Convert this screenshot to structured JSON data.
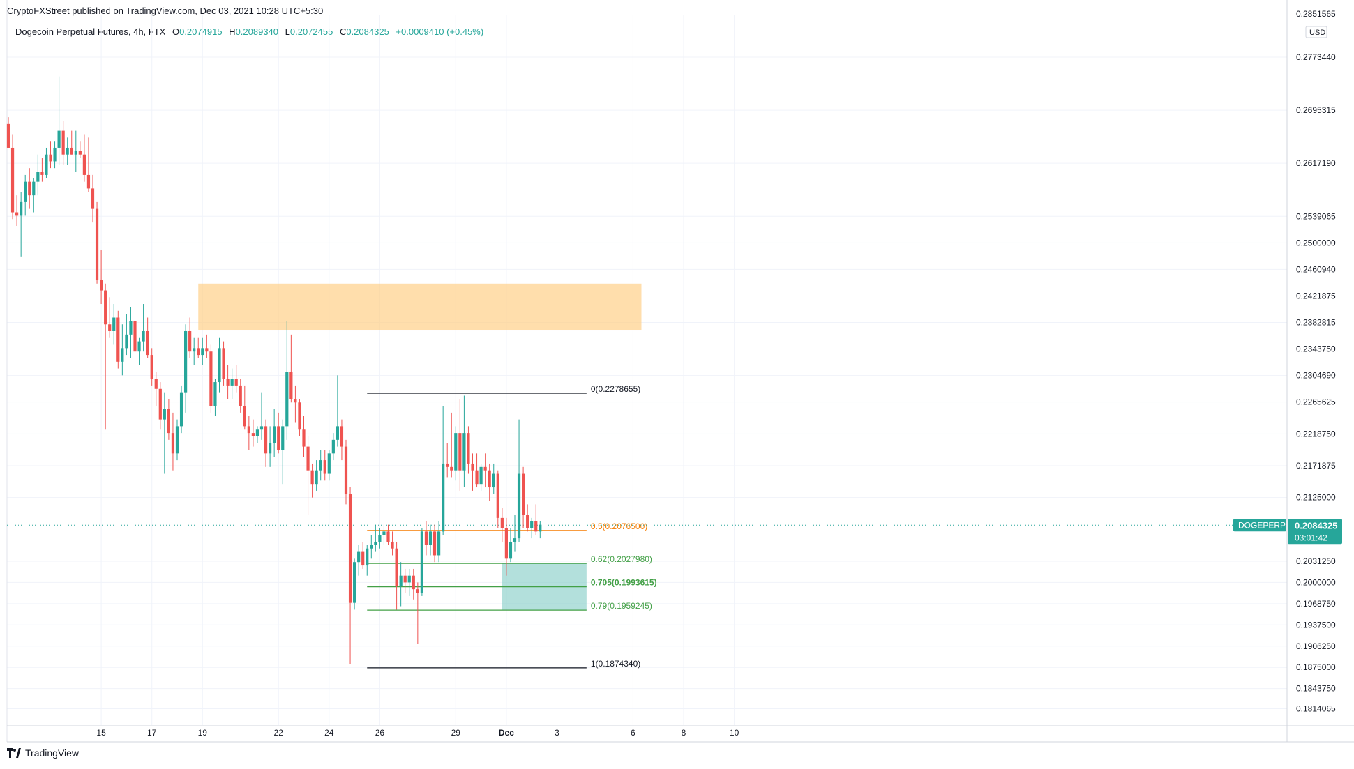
{
  "header": {
    "published": "CryptoFXStreet published on TradingView.com, Dec 03, 2021 10:28 UTC+5:30",
    "symbol": "Dogecoin Perpetual Futures, 4h, FTX",
    "ohlc": {
      "o_label": "O",
      "o": "0.2074915",
      "h_label": "H",
      "h": "0.2089340",
      "l_label": "L",
      "l": "0.2072455",
      "c_label": "C",
      "c": "0.2084325",
      "change": "+0.0009410 (+0.45%)"
    }
  },
  "footer": {
    "brand": "TradingView"
  },
  "colors": {
    "up": "#26a69a",
    "down": "#ef5350",
    "zone": "#ffcc80",
    "fibzone": "#80cbc4",
    "fib05": "#f57c00",
    "fibgreen": "#43a047"
  },
  "chart_data": {
    "type": "candlestick",
    "currency": "USD",
    "ylim": [
      0.179,
      0.2835
    ],
    "price_ticks": [
      "0.2851565",
      "0.2773440",
      "0.2695315",
      "0.2617190",
      "0.2539065",
      "0.2500000",
      "0.2460940",
      "0.2421875",
      "0.2382815",
      "0.2343750",
      "0.2304690",
      "0.2265625",
      "0.2218750",
      "0.2171875",
      "0.2125000",
      "0.2031250",
      "0.2000000",
      "0.1968750",
      "0.1937500",
      "0.1906250",
      "0.1875000",
      "0.1843750",
      "0.1814065"
    ],
    "date_ticks": [
      {
        "label": "15",
        "i": 22
      },
      {
        "label": "17",
        "i": 34
      },
      {
        "label": "19",
        "i": 46
      },
      {
        "label": "22",
        "i": 64
      },
      {
        "label": "24",
        "i": 76
      },
      {
        "label": "26",
        "i": 88
      },
      {
        "label": "29",
        "i": 106
      },
      {
        "label": "Dec",
        "i": 118
      },
      {
        "label": "3",
        "i": 130
      },
      {
        "label": "6",
        "i": 148
      },
      {
        "label": "8",
        "i": 160
      },
      {
        "label": "10",
        "i": 172
      }
    ],
    "candles": [
      [
        0.2675,
        0.2685,
        0.264,
        0.264
      ],
      [
        0.264,
        0.266,
        0.2535,
        0.2545
      ],
      [
        0.2545,
        0.257,
        0.2525,
        0.254
      ],
      [
        0.254,
        0.2575,
        0.248,
        0.256
      ],
      [
        0.256,
        0.26,
        0.254,
        0.259
      ],
      [
        0.259,
        0.261,
        0.255,
        0.257
      ],
      [
        0.257,
        0.2595,
        0.2545,
        0.259
      ],
      [
        0.259,
        0.263,
        0.257,
        0.2605
      ],
      [
        0.2605,
        0.2625,
        0.259,
        0.26
      ],
      [
        0.26,
        0.264,
        0.2595,
        0.263
      ],
      [
        0.263,
        0.265,
        0.261,
        0.262
      ],
      [
        0.262,
        0.265,
        0.261,
        0.264
      ],
      [
        0.264,
        0.2745,
        0.2615,
        0.2665
      ],
      [
        0.2665,
        0.268,
        0.2615,
        0.263
      ],
      [
        0.263,
        0.2655,
        0.2615,
        0.264
      ],
      [
        0.264,
        0.2665,
        0.263,
        0.263
      ],
      [
        0.263,
        0.2665,
        0.2605,
        0.2635
      ],
      [
        0.2635,
        0.265,
        0.2625,
        0.263
      ],
      [
        0.263,
        0.266,
        0.259,
        0.26
      ],
      [
        0.26,
        0.2655,
        0.2575,
        0.258
      ],
      [
        0.258,
        0.26,
        0.253,
        0.255
      ],
      [
        0.255,
        0.256,
        0.244,
        0.2445
      ],
      [
        0.2445,
        0.249,
        0.241,
        0.243
      ],
      [
        0.243,
        0.244,
        0.2225,
        0.238
      ],
      [
        0.238,
        0.242,
        0.236,
        0.237
      ],
      [
        0.237,
        0.241,
        0.235,
        0.239
      ],
      [
        0.239,
        0.24,
        0.2315,
        0.2325
      ],
      [
        0.2325,
        0.238,
        0.2305,
        0.2345
      ],
      [
        0.2345,
        0.2395,
        0.2335,
        0.2365
      ],
      [
        0.2365,
        0.2405,
        0.233,
        0.2385
      ],
      [
        0.2385,
        0.2395,
        0.2325,
        0.234
      ],
      [
        0.234,
        0.236,
        0.232,
        0.2355
      ],
      [
        0.2355,
        0.241,
        0.234,
        0.237
      ],
      [
        0.237,
        0.239,
        0.233,
        0.2335
      ],
      [
        0.2335,
        0.2345,
        0.229,
        0.23
      ],
      [
        0.23,
        0.231,
        0.226,
        0.2285
      ],
      [
        0.2285,
        0.2295,
        0.2225,
        0.224
      ],
      [
        0.224,
        0.228,
        0.216,
        0.2255
      ],
      [
        0.2255,
        0.227,
        0.221,
        0.222
      ],
      [
        0.222,
        0.225,
        0.2165,
        0.219
      ],
      [
        0.219,
        0.224,
        0.218,
        0.223
      ],
      [
        0.223,
        0.229,
        0.222,
        0.228
      ],
      [
        0.228,
        0.238,
        0.225,
        0.237
      ],
      [
        0.237,
        0.239,
        0.233,
        0.234
      ],
      [
        0.234,
        0.236,
        0.232,
        0.2345
      ],
      [
        0.2345,
        0.236,
        0.233,
        0.2335
      ],
      [
        0.2335,
        0.236,
        0.232,
        0.2345
      ],
      [
        0.2345,
        0.2365,
        0.233,
        0.234
      ],
      [
        0.234,
        0.235,
        0.225,
        0.226
      ],
      [
        0.226,
        0.23,
        0.2245,
        0.2295
      ],
      [
        0.2295,
        0.236,
        0.228,
        0.2345
      ],
      [
        0.2345,
        0.2355,
        0.229,
        0.23
      ],
      [
        0.23,
        0.232,
        0.227,
        0.229
      ],
      [
        0.229,
        0.2315,
        0.227,
        0.23
      ],
      [
        0.23,
        0.232,
        0.228,
        0.229
      ],
      [
        0.229,
        0.23,
        0.225,
        0.226
      ],
      [
        0.226,
        0.229,
        0.2225,
        0.223
      ],
      [
        0.223,
        0.2245,
        0.2195,
        0.222
      ],
      [
        0.222,
        0.224,
        0.22,
        0.2215
      ],
      [
        0.2215,
        0.223,
        0.2205,
        0.2225
      ],
      [
        0.2225,
        0.228,
        0.221,
        0.223
      ],
      [
        0.223,
        0.224,
        0.217,
        0.219
      ],
      [
        0.219,
        0.223,
        0.217,
        0.2205
      ],
      [
        0.2205,
        0.2255,
        0.2185,
        0.223
      ],
      [
        0.223,
        0.225,
        0.219,
        0.2195
      ],
      [
        0.2195,
        0.224,
        0.2145,
        0.223
      ],
      [
        0.223,
        0.2385,
        0.221,
        0.231
      ],
      [
        0.231,
        0.2365,
        0.2265,
        0.227
      ],
      [
        0.227,
        0.229,
        0.2235,
        0.2265
      ],
      [
        0.2265,
        0.227,
        0.2215,
        0.2225
      ],
      [
        0.2225,
        0.2245,
        0.2185,
        0.22
      ],
      [
        0.22,
        0.2215,
        0.21,
        0.2165
      ],
      [
        0.2165,
        0.2175,
        0.2125,
        0.2145
      ],
      [
        0.2145,
        0.218,
        0.2135,
        0.2165
      ],
      [
        0.2165,
        0.2195,
        0.215,
        0.218
      ],
      [
        0.218,
        0.2195,
        0.215,
        0.216
      ],
      [
        0.216,
        0.2195,
        0.215,
        0.219
      ],
      [
        0.219,
        0.222,
        0.218,
        0.221
      ],
      [
        0.221,
        0.2305,
        0.22,
        0.223
      ],
      [
        0.223,
        0.224,
        0.218,
        0.22
      ],
      [
        0.22,
        0.221,
        0.2115,
        0.213
      ],
      [
        0.213,
        0.214,
        0.188,
        0.197
      ],
      [
        0.197,
        0.2035,
        0.196,
        0.203
      ],
      [
        0.203,
        0.2055,
        0.201,
        0.2045
      ],
      [
        0.2045,
        0.206,
        0.202,
        0.2025
      ],
      [
        0.2025,
        0.2055,
        0.201,
        0.205
      ],
      [
        0.205,
        0.207,
        0.2035,
        0.2055
      ],
      [
        0.2055,
        0.2085,
        0.2045,
        0.206
      ],
      [
        0.206,
        0.208,
        0.205,
        0.207
      ],
      [
        0.207,
        0.2085,
        0.2055,
        0.2075
      ],
      [
        0.2075,
        0.2085,
        0.2055,
        0.206
      ],
      [
        0.206,
        0.2075,
        0.204,
        0.205
      ],
      [
        0.205,
        0.206,
        0.196,
        0.1995
      ],
      [
        0.1995,
        0.203,
        0.1965,
        0.201
      ],
      [
        0.201,
        0.202,
        0.1985,
        0.2
      ],
      [
        0.2,
        0.202,
        0.198,
        0.201
      ],
      [
        0.201,
        0.202,
        0.1975,
        0.199
      ],
      [
        0.199,
        0.2,
        0.191,
        0.1985
      ],
      [
        0.1985,
        0.208,
        0.198,
        0.2075
      ],
      [
        0.2075,
        0.209,
        0.204,
        0.2055
      ],
      [
        0.2055,
        0.2085,
        0.204,
        0.2075
      ],
      [
        0.2075,
        0.2085,
        0.203,
        0.204
      ],
      [
        0.204,
        0.209,
        0.203,
        0.2075
      ],
      [
        0.2075,
        0.226,
        0.207,
        0.2175
      ],
      [
        0.2175,
        0.2205,
        0.2155,
        0.217
      ],
      [
        0.217,
        0.225,
        0.2155,
        0.2165
      ],
      [
        0.2165,
        0.223,
        0.215,
        0.222
      ],
      [
        0.222,
        0.227,
        0.2135,
        0.2165
      ],
      [
        0.2165,
        0.2275,
        0.214,
        0.222
      ],
      [
        0.222,
        0.223,
        0.216,
        0.2175
      ],
      [
        0.2175,
        0.219,
        0.2135,
        0.2165
      ],
      [
        0.2165,
        0.219,
        0.214,
        0.2145
      ],
      [
        0.2145,
        0.2175,
        0.2135,
        0.217
      ],
      [
        0.217,
        0.219,
        0.214,
        0.2165
      ],
      [
        0.2165,
        0.2175,
        0.212,
        0.214
      ],
      [
        0.214,
        0.2175,
        0.213,
        0.216
      ],
      [
        0.216,
        0.2165,
        0.208,
        0.2095
      ],
      [
        0.2095,
        0.211,
        0.206,
        0.208
      ],
      [
        0.208,
        0.2095,
        0.201,
        0.2035
      ],
      [
        0.2035,
        0.208,
        0.203,
        0.206
      ],
      [
        0.206,
        0.21,
        0.2045,
        0.2065
      ],
      [
        0.2065,
        0.224,
        0.206,
        0.216
      ],
      [
        0.216,
        0.217,
        0.208,
        0.21
      ],
      [
        0.21,
        0.2115,
        0.2075,
        0.208
      ],
      [
        0.208,
        0.2095,
        0.2065,
        0.209
      ],
      [
        0.209,
        0.2115,
        0.207,
        0.2075
      ],
      [
        0.2075,
        0.209,
        0.2065,
        0.2085
      ]
    ],
    "resistance_zone": {
      "i_start": 45,
      "i_end": 150,
      "y_low": 0.2371,
      "y_high": 0.244
    },
    "support_zone": {
      "i_start": 117,
      "i_end": 137,
      "y_low": 0.19592,
      "y_high": 0.2028
    },
    "fib": {
      "i_start": 85,
      "i_end": 137,
      "levels": [
        {
          "ratio": 0,
          "value": 0.2278655,
          "label": "0(0.2278655)"
        },
        {
          "ratio": 0.5,
          "value": 0.20765,
          "label": "0.5(0.2076500)"
        },
        {
          "ratio": 0.62,
          "value": 0.202798,
          "label": "0.62(0.2027980)"
        },
        {
          "ratio": 0.705,
          "value": 0.1993615,
          "label": "0.705(0.1993615)"
        },
        {
          "ratio": 0.79,
          "value": 0.1959245,
          "label": "0.79(0.1959245)"
        },
        {
          "ratio": 1,
          "value": 0.187434,
          "label": "1(0.1874340)"
        }
      ]
    },
    "last_price": {
      "value": 0.2084325,
      "ticker": "DOGEPERP",
      "price_label": "0.2084325",
      "countdown": "03:01:42"
    }
  }
}
